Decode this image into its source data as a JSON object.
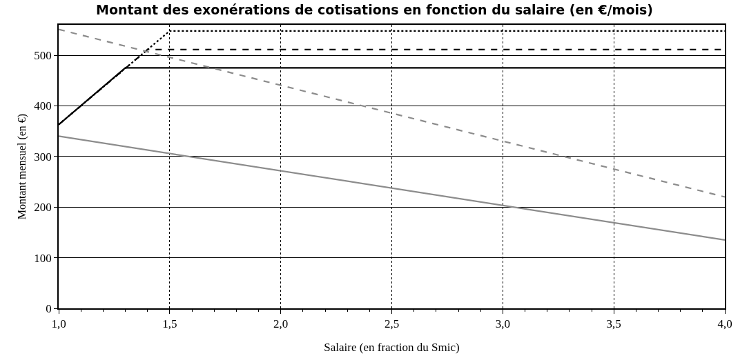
{
  "chart_data": {
    "type": "line",
    "title": "Montant des exonérations de cotisations en fonction du salaire (en €/mois)",
    "xlabel": "Salaire (en fraction du Smic)",
    "ylabel": "Montant mensuel (en €)",
    "series": [
      {
        "color": "#000000",
        "line_style": "dotted",
        "x": [
          1.0,
          1.5,
          4.0
        ],
        "values": [
          363,
          548,
          548
        ]
      },
      {
        "color": "#000000",
        "line_style": "dashed",
        "x": [
          1.0,
          1.4,
          4.0
        ],
        "values": [
          363,
          511,
          511
        ]
      },
      {
        "color": "#000000",
        "line_style": "solid",
        "x": [
          1.0,
          1.3,
          4.0
        ],
        "values": [
          363,
          475,
          475
        ]
      },
      {
        "color": "#8c8c8c",
        "line_style": "dashed",
        "x": [
          1.0,
          4.0
        ],
        "values": [
          551,
          220
        ]
      },
      {
        "color": "#8c8c8c",
        "line_style": "solid",
        "x": [
          1.0,
          4.0
        ],
        "values": [
          340,
          135
        ]
      }
    ],
    "xlim": [
      1.0,
      4.0
    ],
    "xticks": [
      {
        "value": 1.0,
        "label": "1,0"
      },
      {
        "value": 1.5,
        "label": "1,5"
      },
      {
        "value": 2.0,
        "label": "2,0"
      },
      {
        "value": 2.5,
        "label": "2,5"
      },
      {
        "value": 3.0,
        "label": "3,0"
      },
      {
        "value": 3.5,
        "label": "3,5"
      },
      {
        "value": 4.0,
        "label": "4,0"
      }
    ],
    "ylim": [
      0,
      560
    ],
    "yticks": [
      0,
      100,
      200,
      300,
      400,
      500
    ],
    "grid": true,
    "marker": "none"
  }
}
